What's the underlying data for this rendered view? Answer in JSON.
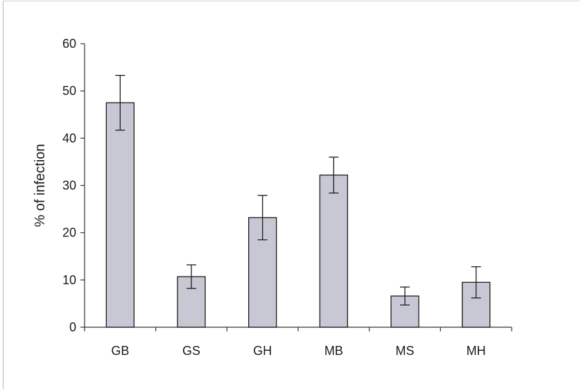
{
  "chart_data": {
    "type": "bar",
    "categories": [
      "GB",
      "GS",
      "GH",
      "MB",
      "MS",
      "MH"
    ],
    "values": [
      47.5,
      10.7,
      23.2,
      32.2,
      6.6,
      9.5
    ],
    "error": [
      5.8,
      2.5,
      4.7,
      3.8,
      1.9,
      3.3
    ],
    "title": "",
    "xlabel": "",
    "ylabel": "% of infection",
    "ylim": [
      0,
      60
    ],
    "yticks": [
      0,
      10,
      20,
      30,
      40,
      50,
      60
    ],
    "grid": false,
    "legend": "none",
    "colors": {
      "bar_fill": "#c8c8d4",
      "bar_stroke": "#1a1a1a",
      "axis": "#333333"
    }
  }
}
